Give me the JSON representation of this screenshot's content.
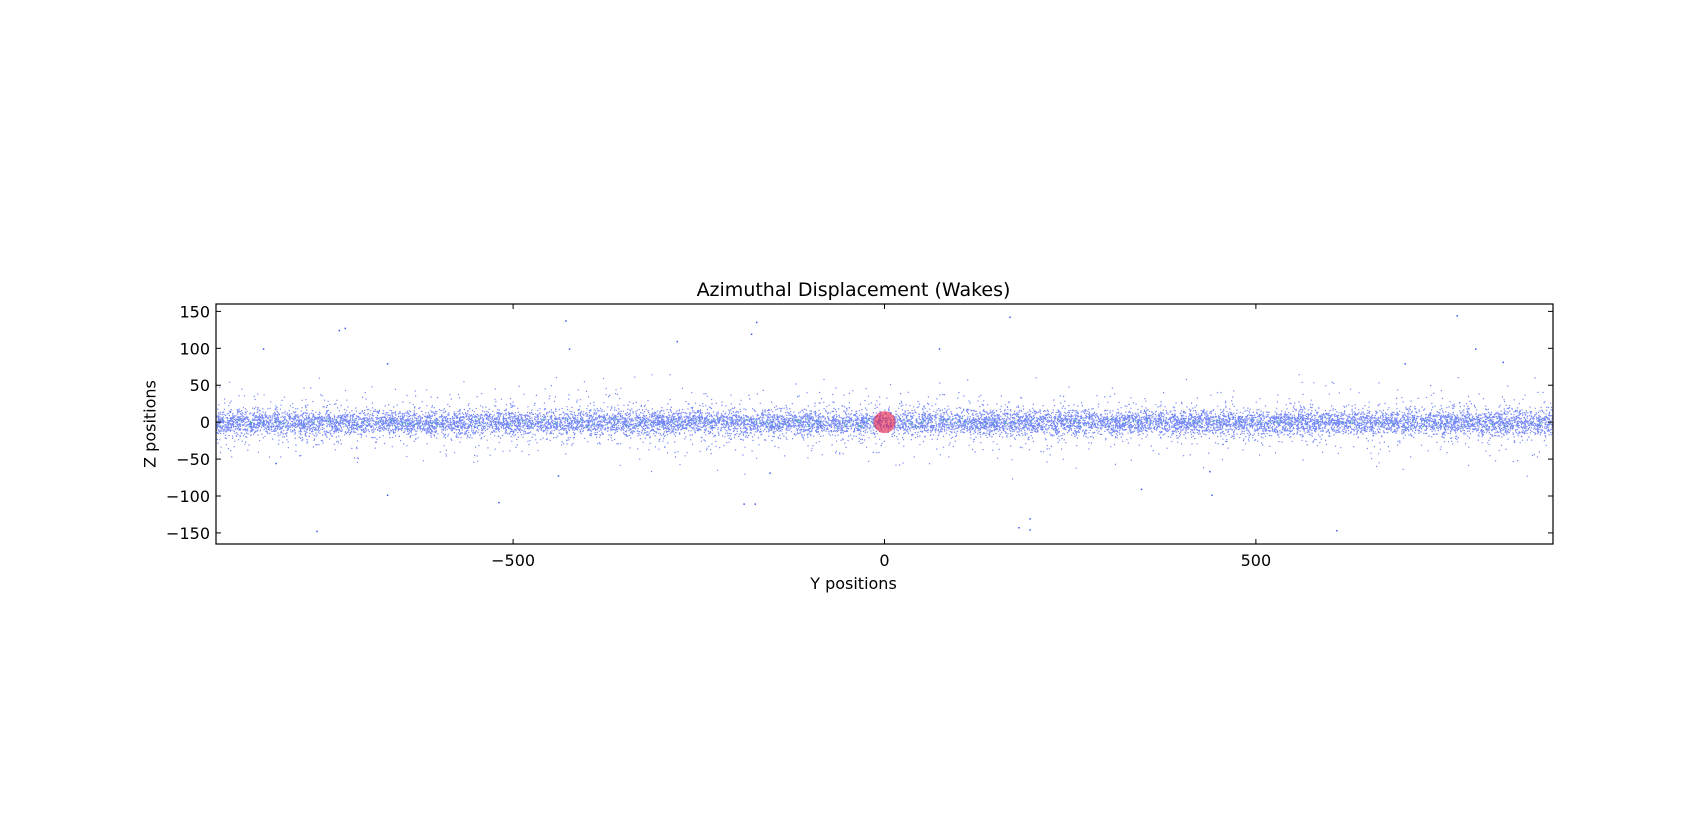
{
  "chart_data": {
    "type": "scatter",
    "title": "Azimuthal Displacement (Wakes)",
    "xlabel": "Y positions",
    "ylabel": "Z positions",
    "xlim": [
      -900,
      900
    ],
    "ylim": [
      -165,
      160
    ],
    "xticks": [
      -500,
      0,
      500
    ],
    "xtick_labels": [
      "−500",
      "0",
      "500"
    ],
    "yticks": [
      150,
      100,
      50,
      0,
      -50,
      -100,
      -150
    ],
    "ytick_labels": [
      "150",
      "100",
      "50",
      "0",
      "−50",
      "−100",
      "−150"
    ],
    "grid": false,
    "legend": "none",
    "colors": {
      "particles": "#0022ee",
      "particles_secondary": "#22aa99",
      "marker": "#ee2244"
    },
    "series": [
      {
        "role": "particles",
        "distribution": "dense band centered near z = 0 spanning the full y range",
        "y_range": [
          -900,
          900
        ],
        "z_core_spread": 8,
        "sample_outliers": [
          {
            "y": -837,
            "z": 100
          },
          {
            "y": -735,
            "z": 125
          },
          {
            "y": -727,
            "z": 128
          },
          {
            "y": -430,
            "z": 138
          },
          {
            "y": -173,
            "z": 136
          },
          {
            "y": -180,
            "z": 120
          },
          {
            "y": -280,
            "z": 110
          },
          {
            "y": -425,
            "z": 100
          },
          {
            "y": -670,
            "z": 80
          },
          {
            "y": 168,
            "z": 143
          },
          {
            "y": 770,
            "z": 145
          },
          {
            "y": 795,
            "z": 100
          },
          {
            "y": 832,
            "z": 82
          },
          {
            "y": 700,
            "z": 80
          },
          {
            "y": 73,
            "z": 100
          },
          {
            "y": -670,
            "z": -98
          },
          {
            "y": -520,
            "z": -108
          },
          {
            "y": -190,
            "z": -110
          },
          {
            "y": -175,
            "z": -110
          },
          {
            "y": -765,
            "z": -147
          },
          {
            "y": 195,
            "z": -130
          },
          {
            "y": 180,
            "z": -142
          },
          {
            "y": 195,
            "z": -145
          },
          {
            "y": 608,
            "z": -146
          },
          {
            "y": 440,
            "z": -98
          },
          {
            "y": 345,
            "z": -90
          },
          {
            "y": -440,
            "z": -72
          },
          {
            "y": -155,
            "z": -68
          },
          {
            "y": 437,
            "z": -66
          },
          {
            "y": -820,
            "z": -55
          }
        ]
      },
      {
        "role": "marker",
        "points": [
          {
            "y": 0,
            "z": 0
          }
        ]
      }
    ]
  }
}
